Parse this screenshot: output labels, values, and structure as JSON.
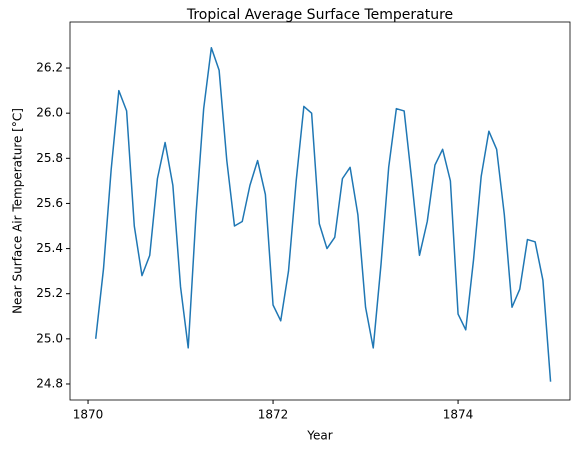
{
  "chart_data": {
    "type": "line",
    "title": "Tropical Average Surface Temperature",
    "x_label": "Year",
    "y_label": "Near Surface Air Temperature [°C]",
    "x": [
      1870.083,
      1870.167,
      1870.25,
      1870.333,
      1870.417,
      1870.5,
      1870.583,
      1870.667,
      1870.75,
      1870.833,
      1870.917,
      1871,
      1871.083,
      1871.167,
      1871.25,
      1871.333,
      1871.417,
      1871.5,
      1871.583,
      1871.667,
      1871.75,
      1871.833,
      1871.917,
      1872,
      1872.083,
      1872.167,
      1872.25,
      1872.333,
      1872.417,
      1872.5,
      1872.583,
      1872.667,
      1872.75,
      1872.833,
      1872.917,
      1873,
      1873.083,
      1873.167,
      1873.25,
      1873.333,
      1873.417,
      1873.5,
      1873.583,
      1873.667,
      1873.75,
      1873.833,
      1873.917,
      1874,
      1874.083,
      1874.167,
      1874.25,
      1874.333,
      1874.417,
      1874.5,
      1874.583,
      1874.667,
      1874.75,
      1874.833,
      1874.917,
      1875
    ],
    "series": [
      {
        "color": "#1f77b4",
        "values": [
          25.0,
          25.31,
          25.75,
          26.1,
          26.01,
          25.5,
          25.28,
          25.37,
          25.71,
          25.87,
          25.68,
          25.23,
          24.96,
          25.55,
          26.02,
          26.29,
          26.19,
          25.79,
          25.5,
          25.52,
          25.68,
          25.79,
          25.64,
          25.15,
          25.08,
          25.3,
          25.7,
          26.03,
          26.0,
          25.51,
          25.4,
          25.45,
          25.71,
          25.76,
          25.55,
          25.14,
          24.96,
          25.33,
          25.76,
          26.02,
          26.01,
          25.7,
          25.37,
          25.52,
          25.77,
          25.84,
          25.7,
          25.11,
          25.04,
          25.35,
          25.72,
          25.92,
          25.84,
          25.55,
          25.14,
          25.22,
          25.44,
          25.43,
          25.26,
          24.81
        ]
      }
    ],
    "xlim": [
      1869.805,
      1875.21
    ],
    "xticks": [
      1870,
      1872,
      1874
    ],
    "ylim": [
      24.729,
      26.404
    ],
    "yticks": [
      24.8,
      {
        "value": 25,
        "label": "25.0"
      },
      25.2,
      25.4,
      25.6,
      25.8,
      {
        "value": 26,
        "label": "26.0"
      },
      26.2
    ],
    "grid": false
  }
}
